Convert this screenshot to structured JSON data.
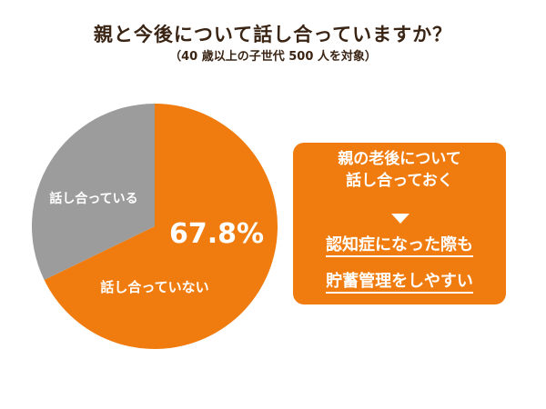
{
  "chart_data": {
    "type": "pie",
    "title": "親と今後について話し合っていますか？",
    "subtitle": "（40 歳以上の子世代 500 人を対象）",
    "slices": [
      {
        "label": "話し合っていない",
        "value": 67.8,
        "value_label": "67.8%",
        "color": "#f07c0f"
      },
      {
        "label": "話し合っている",
        "value": 32.2,
        "color": "#9c9c9c"
      }
    ],
    "legend": "none"
  },
  "callout": {
    "line1": "親の老後について",
    "line2": "話し合っておく",
    "emphasis1": "認知症になった際も",
    "emphasis2": "貯蓄管理をしやすい",
    "color": "#f07c0f"
  }
}
